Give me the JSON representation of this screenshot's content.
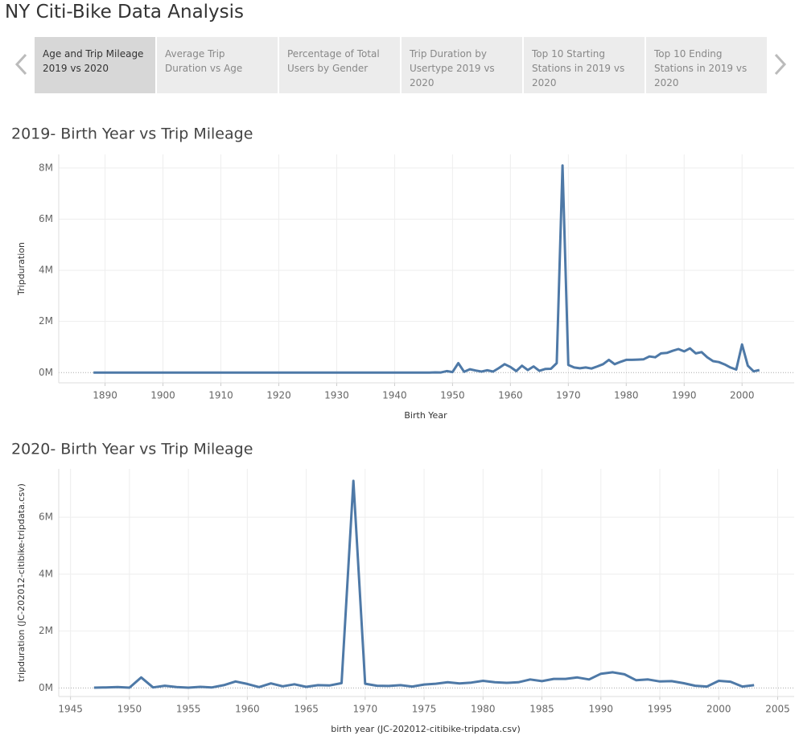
{
  "header": {
    "title": "NY Citi-Bike Data Analysis",
    "tabs": [
      "Age and Trip Mileage 2019 vs 2020",
      "Average Trip Duration vs Age",
      "Percentage of Total Users by Gender",
      "Trip Duration by Usertype 2019 vs 2020",
      "Top 10 Starting Stations in 2019 vs 2020",
      "Top 10 Ending Stations in 2019 vs 2020"
    ]
  },
  "chart_data": [
    {
      "type": "line",
      "title": "2019- Birth Year vs Trip Mileage",
      "x_label": "Birth Year",
      "y_label": "Tripduration",
      "color": "#4e79a7",
      "grid": true,
      "x": [
        1888,
        1900,
        1910,
        1920,
        1930,
        1940,
        1946,
        1947,
        1948,
        1949,
        1950,
        1951,
        1952,
        1953,
        1954,
        1955,
        1956,
        1957,
        1958,
        1959,
        1960,
        1961,
        1962,
        1963,
        1964,
        1965,
        1966,
        1967,
        1968,
        1969,
        1970,
        1971,
        1972,
        1973,
        1974,
        1975,
        1976,
        1977,
        1978,
        1979,
        1980,
        1981,
        1982,
        1983,
        1984,
        1985,
        1986,
        1987,
        1988,
        1989,
        1990,
        1991,
        1992,
        1993,
        1994,
        1995,
        1996,
        1997,
        1998,
        1999,
        2000,
        2001,
        2002,
        2003
      ],
      "values": [
        0,
        0,
        0,
        0,
        0,
        0,
        0,
        10000,
        5000,
        60000,
        20000,
        370000,
        30000,
        130000,
        80000,
        40000,
        90000,
        40000,
        180000,
        330000,
        220000,
        60000,
        270000,
        100000,
        240000,
        70000,
        140000,
        150000,
        370000,
        8100000,
        300000,
        200000,
        170000,
        200000,
        160000,
        240000,
        330000,
        500000,
        330000,
        420000,
        500000,
        500000,
        510000,
        520000,
        630000,
        600000,
        750000,
        770000,
        850000,
        920000,
        830000,
        950000,
        750000,
        800000,
        600000,
        450000,
        410000,
        320000,
        200000,
        120000,
        1100000,
        270000,
        50000,
        100000
      ],
      "xlim": [
        1882,
        2009
      ],
      "xticks": [
        1890,
        1900,
        1910,
        1920,
        1930,
        1940,
        1950,
        1960,
        1970,
        1980,
        1990,
        2000
      ],
      "ylim": [
        -400000,
        8530000
      ],
      "yticks": [
        {
          "value": 0,
          "label": "0M"
        },
        {
          "value": 2000000,
          "label": "2M"
        },
        {
          "value": 4000000,
          "label": "4M"
        },
        {
          "value": 6000000,
          "label": "6M"
        },
        {
          "value": 8000000,
          "label": "8M"
        }
      ]
    },
    {
      "type": "line",
      "title": "2020- Birth Year vs Trip Mileage",
      "x_label": "birth year (JC-202012-citibike-tripdata.csv)",
      "y_label": "tripduration (JC-202012-citibike-tripdata.csv)",
      "color": "#4e79a7",
      "grid": true,
      "x": [
        1947,
        1948,
        1949,
        1950,
        1951,
        1952,
        1953,
        1954,
        1955,
        1956,
        1957,
        1958,
        1959,
        1960,
        1961,
        1962,
        1963,
        1964,
        1965,
        1966,
        1967,
        1968,
        1969,
        1970,
        1971,
        1972,
        1973,
        1974,
        1975,
        1976,
        1977,
        1978,
        1979,
        1980,
        1981,
        1982,
        1983,
        1984,
        1985,
        1986,
        1987,
        1988,
        1989,
        1990,
        1991,
        1992,
        1993,
        1994,
        1995,
        1996,
        1997,
        1998,
        1999,
        2000,
        2001,
        2002,
        2003
      ],
      "values": [
        10000,
        20000,
        30000,
        10000,
        370000,
        20000,
        80000,
        30000,
        10000,
        40000,
        20000,
        100000,
        230000,
        140000,
        30000,
        160000,
        60000,
        130000,
        40000,
        100000,
        90000,
        170000,
        7280000,
        150000,
        80000,
        70000,
        100000,
        50000,
        120000,
        150000,
        200000,
        160000,
        190000,
        250000,
        200000,
        180000,
        200000,
        300000,
        240000,
        320000,
        320000,
        370000,
        300000,
        500000,
        550000,
        480000,
        270000,
        300000,
        230000,
        240000,
        170000,
        80000,
        50000,
        250000,
        220000,
        50000,
        100000
      ],
      "xlim": [
        1944,
        2006.4
      ],
      "xticks": [
        1945,
        1950,
        1955,
        1960,
        1965,
        1970,
        1975,
        1980,
        1985,
        1990,
        1995,
        2000,
        2005
      ],
      "ylim": [
        -300000,
        7700000
      ],
      "yticks": [
        {
          "value": 0,
          "label": "0M"
        },
        {
          "value": 2000000,
          "label": "2M"
        },
        {
          "value": 4000000,
          "label": "4M"
        },
        {
          "value": 6000000,
          "label": "6M"
        }
      ]
    }
  ]
}
